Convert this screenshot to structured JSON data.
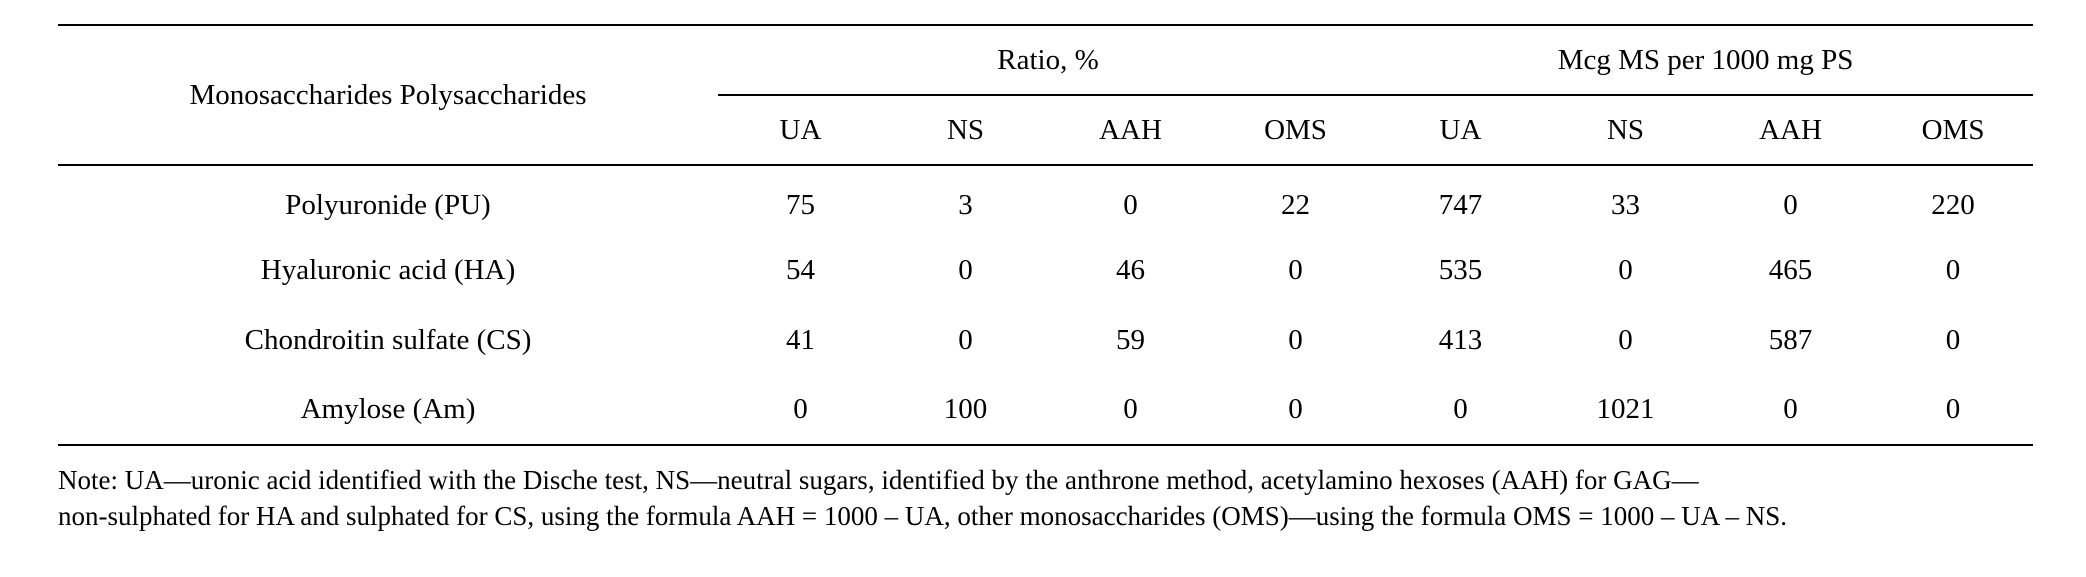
{
  "table": {
    "stub_header": "Monosaccharides Polysaccharides",
    "groups": [
      {
        "label": "Ratio, %"
      },
      {
        "label": "Mcg MS per 1000 mg PS"
      }
    ],
    "sub_headers": [
      "UA",
      "NS",
      "AAH",
      "OMS",
      "UA",
      "NS",
      "AAH",
      "OMS"
    ],
    "rows": [
      {
        "name": "Polyuronide (PU)",
        "cells": [
          "75",
          "3",
          "0",
          "22",
          "747",
          "33",
          "0",
          "220"
        ]
      },
      {
        "name": "Hyaluronic acid (HA)",
        "cells": [
          "54",
          "0",
          "46",
          "0",
          "535",
          "0",
          "465",
          "0"
        ]
      },
      {
        "name": "Chondroitin sulfate (CS)",
        "cells": [
          "41",
          "0",
          "59",
          "0",
          "413",
          "0",
          "587",
          "0"
        ]
      },
      {
        "name": "Amylose (Am)",
        "cells": [
          "0",
          "100",
          "0",
          "0",
          "0",
          "1021",
          "0",
          "0"
        ]
      }
    ]
  },
  "note": {
    "line1": "Note: UA—uronic acid identified with the Dische test, NS—neutral sugars, identified by the anthrone method, acetylamino hexoses (AAH) for GAG—",
    "line2": "non-sulphated for HA and sulphated for CS, using the formula AAH = 1000 – UA, other monosaccharides (OMS)—using the formula OMS = 1000 – UA – NS."
  }
}
